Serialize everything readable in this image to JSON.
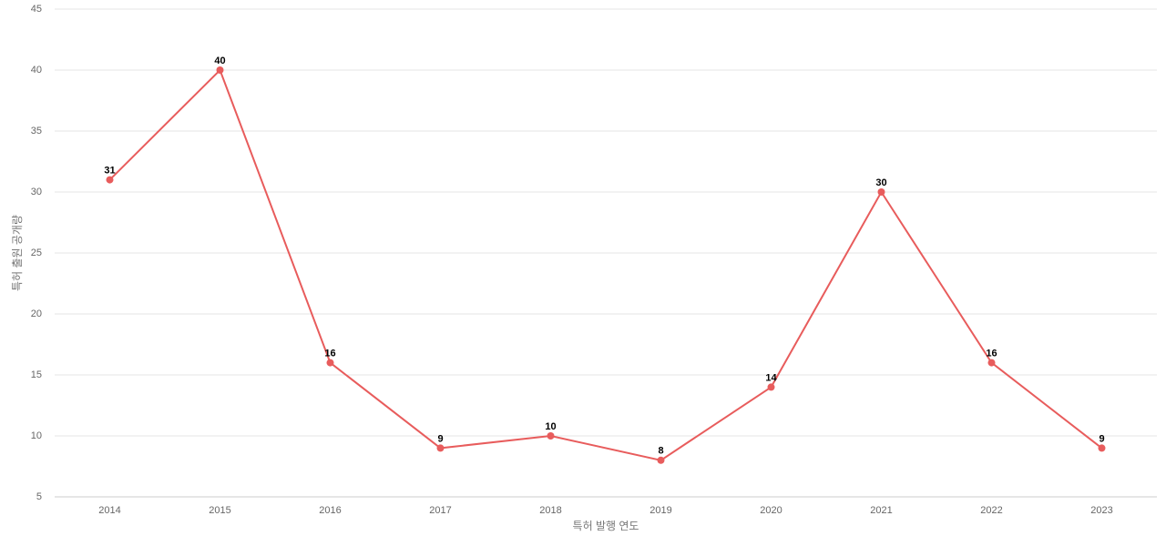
{
  "chart_data": {
    "type": "line",
    "x_label": "특허 발행 연도",
    "y_label": "특허 출원 공개량",
    "categories": [
      "2014",
      "2015",
      "2016",
      "2017",
      "2018",
      "2019",
      "2020",
      "2021",
      "2022",
      "2023"
    ],
    "series": [
      {
        "color": "#e85c5c",
        "values": [
          31,
          40,
          16,
          9,
          10,
          8,
          14,
          30,
          16,
          9
        ]
      }
    ],
    "ylim": [
      5,
      45
    ],
    "yticks": [
      5,
      10,
      15,
      20,
      25,
      30,
      35,
      40,
      45
    ],
    "grid": true
  }
}
